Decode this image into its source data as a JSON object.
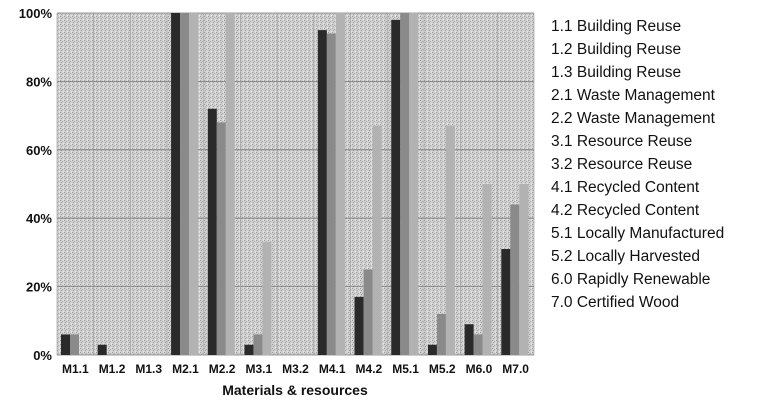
{
  "chart_data": {
    "type": "bar",
    "xlabel": "Materials & resources",
    "ylabel": "",
    "ylim": [
      0,
      100
    ],
    "yticks": [
      "0%",
      "20%",
      "40%",
      "60%",
      "80%",
      "100%"
    ],
    "grid": true,
    "legend_position": "right",
    "categories": [
      "M1.1",
      "M1.2",
      "M1.3",
      "M2.1",
      "M2.2",
      "M3.1",
      "M3.2",
      "M4.1",
      "M4.2",
      "M5.1",
      "M5.2",
      "M6.0",
      "M7.0"
    ],
    "series": [
      {
        "color": "#2a2a2a",
        "values": [
          6,
          3,
          0,
          100,
          72,
          3,
          0,
          95,
          17,
          98,
          3,
          9,
          31
        ]
      },
      {
        "color": "#8a8a8a",
        "values": [
          6,
          0,
          0,
          100,
          68,
          6,
          0,
          94,
          25,
          100,
          12,
          6,
          44
        ]
      },
      {
        "color": "#b2b2b2",
        "values": [
          0,
          0,
          0,
          100,
          100,
          33,
          0,
          100,
          67,
          100,
          67,
          50,
          50
        ]
      }
    ],
    "legend_items": [
      "1.1 Building Reuse",
      "1.2 Building Reuse",
      "1.3 Building Reuse",
      "2.1 Waste Management",
      "2.2 Waste Management",
      "3.1 Resource Reuse",
      "3.2 Resource Reuse",
      "4.1 Recycled Content",
      "4.2 Recycled Content",
      "5.1 Locally Manufactured",
      "5.2 Locally Harvested",
      "6.0 Rapidly Renewable",
      "7.0 Certified Wood"
    ]
  }
}
